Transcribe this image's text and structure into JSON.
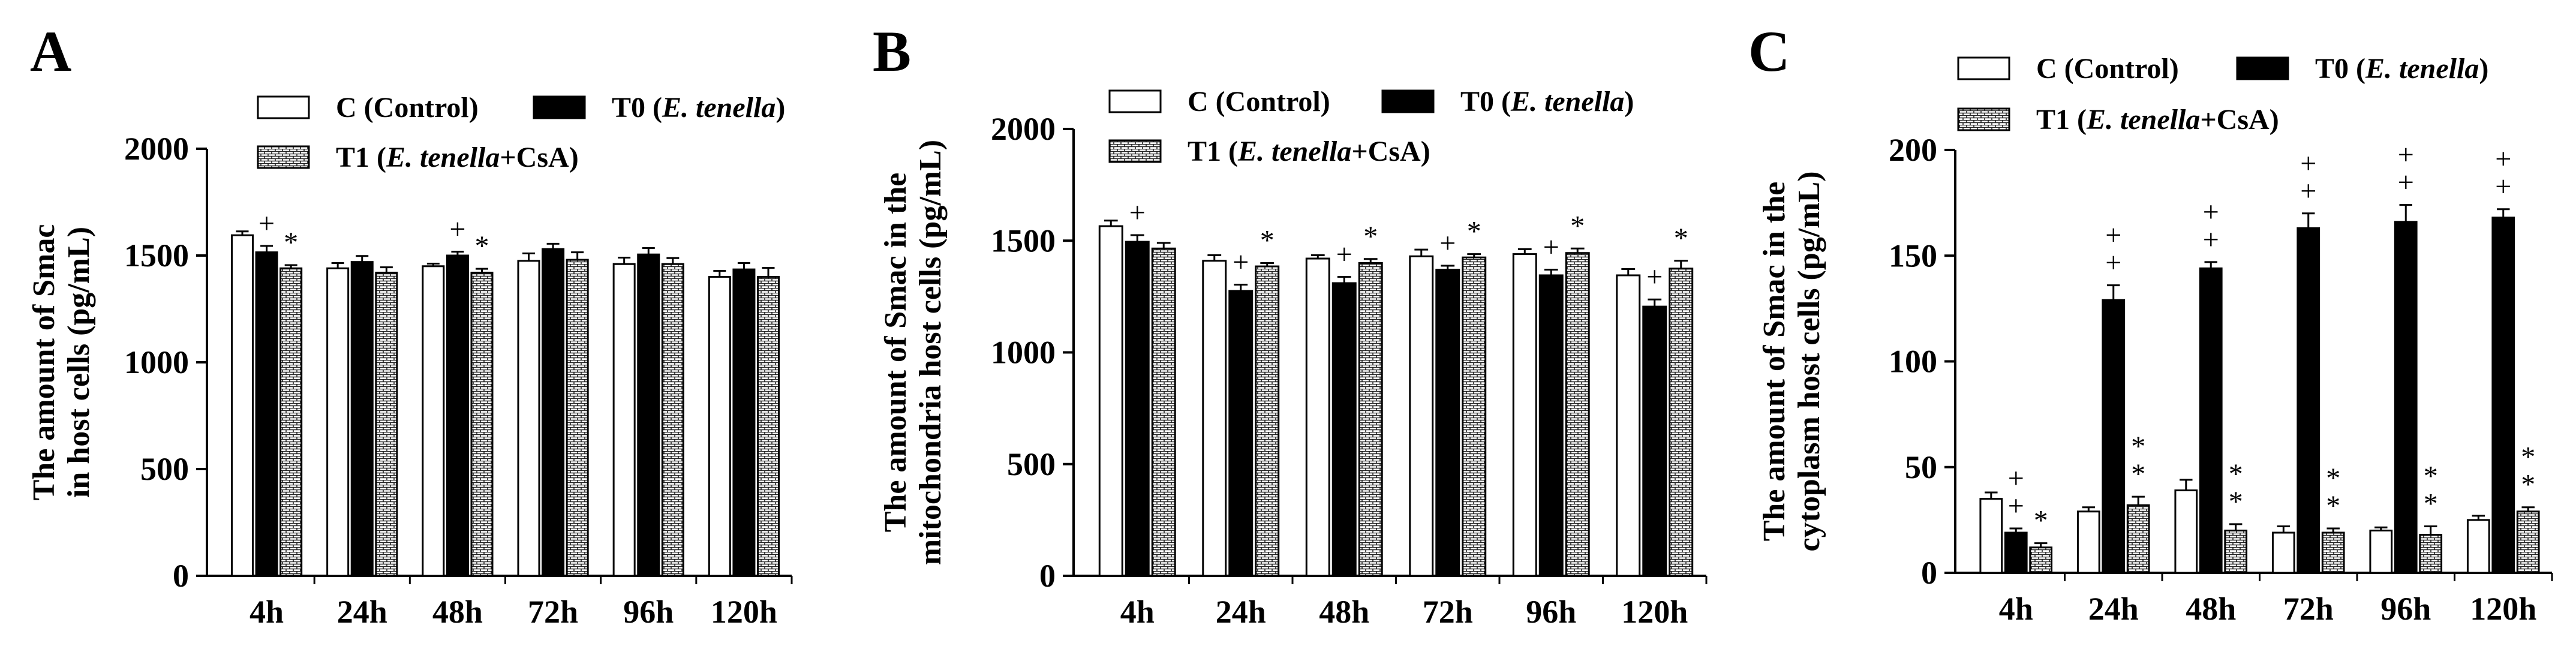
{
  "chart_data": [
    {
      "type": "bar",
      "panel_label": "A",
      "title": "",
      "ylabel_lines": [
        "The amount of Smac",
        "in host cells (pg/mL)"
      ],
      "xlabel": "",
      "categories": [
        "4h",
        "24h",
        "48h",
        "72h",
        "96h",
        "120h"
      ],
      "ylim": [
        0,
        2000
      ],
      "yticks": [
        0,
        500,
        1000,
        1500,
        2000
      ],
      "grid": false,
      "legend_position": "top",
      "legend": [
        {
          "key": "C",
          "label": "C (Control)",
          "italic": ""
        },
        {
          "key": "T0",
          "label": "T0 (",
          "italic": "E. tenella",
          "suffix": ")"
        },
        {
          "key": "T1",
          "label": "T1 (",
          "italic": "E. tenella",
          "suffix": "+CsA)"
        }
      ],
      "series": [
        {
          "name": "C (Control)",
          "values": [
            1595,
            1440,
            1450,
            1475,
            1460,
            1400
          ],
          "errors": [
            18,
            25,
            12,
            35,
            30,
            28
          ]
        },
        {
          "name": "T0 (E. tenella)",
          "values": [
            1515,
            1470,
            1500,
            1530,
            1505,
            1435
          ],
          "errors": [
            30,
            28,
            18,
            25,
            30,
            30
          ]
        },
        {
          "name": "T1 (E. tenella+CsA)",
          "values": [
            1440,
            1420,
            1420,
            1480,
            1460,
            1400
          ],
          "errors": [
            15,
            25,
            18,
            35,
            28,
            42
          ]
        }
      ],
      "annotations": [
        {
          "category": "4h",
          "series": 1,
          "marks": [
            "+"
          ]
        },
        {
          "category": "4h",
          "series": 2,
          "marks": [
            "*"
          ]
        },
        {
          "category": "48h",
          "series": 1,
          "marks": [
            "+"
          ]
        },
        {
          "category": "48h",
          "series": 2,
          "marks": [
            "*"
          ]
        }
      ]
    },
    {
      "type": "bar",
      "panel_label": "B",
      "title": "",
      "ylabel_lines": [
        "The amount of Smac in  the",
        "mitochondria host cells (pg/mL)"
      ],
      "xlabel": "",
      "categories": [
        "4h",
        "24h",
        "48h",
        "72h",
        "96h",
        "120h"
      ],
      "ylim": [
        0,
        2000
      ],
      "yticks": [
        0,
        500,
        1000,
        1500,
        2000
      ],
      "grid": false,
      "legend_position": "top",
      "legend": [
        {
          "key": "C",
          "label": "C (Control)",
          "italic": ""
        },
        {
          "key": "T0",
          "label": "T0 (",
          "italic": "E. tenella",
          "suffix": ")"
        },
        {
          "key": "T1",
          "label": "T1 (",
          "italic": "E. tenella",
          "suffix": "+CsA)"
        }
      ],
      "series": [
        {
          "name": "C (Control)",
          "values": [
            1565,
            1410,
            1420,
            1430,
            1440,
            1345
          ],
          "errors": [
            25,
            25,
            15,
            30,
            22,
            28
          ]
        },
        {
          "name": "T0 (E. tenella)",
          "values": [
            1495,
            1275,
            1310,
            1370,
            1345,
            1205
          ],
          "errors": [
            30,
            28,
            28,
            18,
            25,
            32
          ]
        },
        {
          "name": "T1 (E. tenella+CsA)",
          "values": [
            1465,
            1385,
            1400,
            1425,
            1445,
            1375
          ],
          "errors": [
            25,
            15,
            18,
            15,
            20,
            35
          ]
        }
      ],
      "annotations": [
        {
          "category": "4h",
          "series": 1,
          "marks": [
            "+"
          ]
        },
        {
          "category": "24h",
          "series": 1,
          "marks": [
            "+"
          ]
        },
        {
          "category": "24h",
          "series": 2,
          "marks": [
            "*"
          ]
        },
        {
          "category": "48h",
          "series": 1,
          "marks": [
            "+"
          ]
        },
        {
          "category": "48h",
          "series": 2,
          "marks": [
            "*"
          ]
        },
        {
          "category": "72h",
          "series": 1,
          "marks": [
            "+"
          ]
        },
        {
          "category": "72h",
          "series": 2,
          "marks": [
            "*"
          ]
        },
        {
          "category": "96h",
          "series": 1,
          "marks": [
            "+"
          ]
        },
        {
          "category": "96h",
          "series": 2,
          "marks": [
            "*"
          ]
        },
        {
          "category": "120h",
          "series": 1,
          "marks": [
            "+"
          ]
        },
        {
          "category": "120h",
          "series": 2,
          "marks": [
            "*"
          ]
        }
      ]
    },
    {
      "type": "bar",
      "panel_label": "C",
      "title": "",
      "ylabel_lines": [
        "The amount of Smac in  the",
        "cytoplasm host cells (pg/mL)"
      ],
      "xlabel": "",
      "categories": [
        "4h",
        "24h",
        "48h",
        "72h",
        "96h",
        "120h"
      ],
      "ylim": [
        0,
        200
      ],
      "yticks": [
        0,
        50,
        100,
        150,
        200
      ],
      "grid": false,
      "legend_position": "top",
      "legend": [
        {
          "key": "C",
          "label": "C (Control)",
          "italic": ""
        },
        {
          "key": "T0",
          "label": "T0 (",
          "italic": "E. tenella",
          "suffix": ")"
        },
        {
          "key": "T1",
          "label": "T1 (",
          "italic": "E. tenella",
          "suffix": "+CsA)"
        }
      ],
      "series": [
        {
          "name": "C (Control)",
          "values": [
            35,
            29,
            39,
            19,
            20,
            25
          ],
          "errors": [
            3,
            2,
            5,
            3,
            1.5,
            2
          ]
        },
        {
          "name": "T0 (E. tenella)",
          "values": [
            19,
            129,
            144,
            163,
            166,
            168
          ],
          "errors": [
            2,
            7,
            3,
            7,
            8,
            4
          ]
        },
        {
          "name": "T1 (E. tenella+CsA)",
          "values": [
            12,
            32,
            20,
            19,
            18,
            29
          ],
          "errors": [
            2,
            4,
            3,
            2,
            4,
            2
          ]
        }
      ],
      "annotations": [
        {
          "category": "4h",
          "series": 1,
          "marks": [
            "+",
            "+"
          ]
        },
        {
          "category": "4h",
          "series": 2,
          "marks": [
            "*"
          ]
        },
        {
          "category": "24h",
          "series": 1,
          "marks": [
            "+",
            "+"
          ]
        },
        {
          "category": "24h",
          "series": 2,
          "marks": [
            "*",
            "*"
          ]
        },
        {
          "category": "48h",
          "series": 1,
          "marks": [
            "+",
            "+"
          ]
        },
        {
          "category": "48h",
          "series": 2,
          "marks": [
            "*",
            "*"
          ]
        },
        {
          "category": "72h",
          "series": 1,
          "marks": [
            "+",
            "+"
          ]
        },
        {
          "category": "72h",
          "series": 2,
          "marks": [
            "*",
            "*"
          ]
        },
        {
          "category": "96h",
          "series": 1,
          "marks": [
            "+",
            "+"
          ]
        },
        {
          "category": "96h",
          "series": 2,
          "marks": [
            "*",
            "*"
          ]
        },
        {
          "category": "120h",
          "series": 1,
          "marks": [
            "+",
            "+"
          ]
        },
        {
          "category": "120h",
          "series": 2,
          "marks": [
            "*",
            "*"
          ]
        }
      ]
    }
  ],
  "colors": {
    "control_fill": "#ffffff",
    "t0_fill": "#000000",
    "t1_pattern": "#000000",
    "axis": "#000000"
  }
}
